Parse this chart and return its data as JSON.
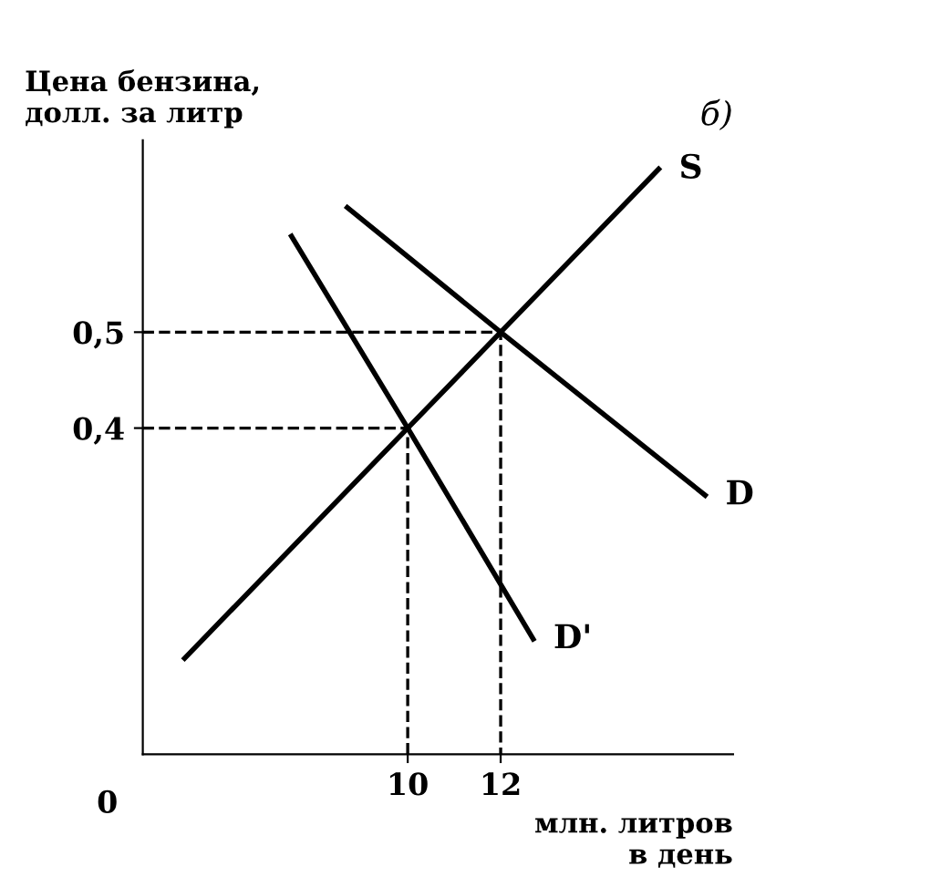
{
  "chart_data": {
    "type": "line",
    "title": "б)",
    "ylabel": "Цена бензина,\nдолл. за литр",
    "xlabel": "млн. литров\nв день",
    "annotations": [
      "0"
    ],
    "xlim": [
      4.3,
      17
    ],
    "ylim": [
      0.06,
      0.7
    ],
    "xticks": [
      10,
      12
    ],
    "yticks": [
      {
        "value": 0.4,
        "label": "0,4"
      },
      {
        "value": 0.5,
        "label": "0,5"
      }
    ],
    "grid": false,
    "legend": false,
    "marker": "none",
    "series": [
      {
        "name": "S",
        "color": "#000000",
        "x": [
          5.2,
          10,
          12,
          15.4
        ],
        "values": [
          0.16,
          0.4,
          0.5,
          0.67
        ]
      },
      {
        "name": "D",
        "color": "#000000",
        "x": [
          8.7,
          12,
          16.4
        ],
        "values": [
          0.63,
          0.5,
          0.33
        ]
      },
      {
        "name": "D'",
        "color": "#000000",
        "x": [
          7.5,
          10,
          12.7
        ],
        "values": [
          0.6,
          0.4,
          0.18
        ]
      },
      {
        "color": "#000000",
        "line_style": "dashed",
        "x": [
          4.3,
          12,
          12
        ],
        "values": [
          0.5,
          0.5,
          0.06
        ]
      },
      {
        "color": "#000000",
        "line_style": "dashed",
        "x": [
          4.3,
          10,
          10
        ],
        "values": [
          0.4,
          0.4,
          0.06
        ]
      }
    ]
  }
}
